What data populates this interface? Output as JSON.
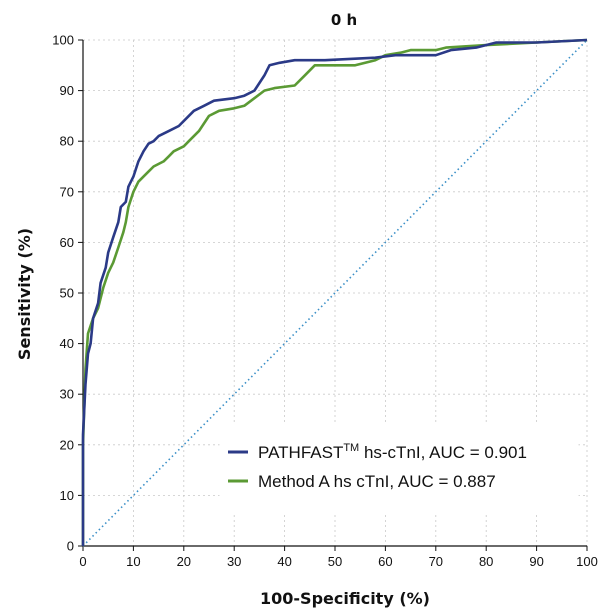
{
  "chart_data": {
    "type": "line",
    "title": "0 h",
    "xlabel": "100-Specificity (%)",
    "ylabel": "Sensitivity (%)",
    "xlim": [
      0,
      100
    ],
    "ylim": [
      0,
      100
    ],
    "x_ticks": [
      "0",
      "10",
      "20",
      "30",
      "40",
      "50",
      "60",
      "70",
      "80",
      "90",
      "100"
    ],
    "y_ticks": [
      "0",
      "10",
      "20",
      "30",
      "40",
      "50",
      "60",
      "70",
      "80",
      "90",
      "100"
    ],
    "grid": true,
    "legend_position": "bottom-right",
    "series": [
      {
        "name_main": "PATHFAST",
        "name_sup": "TM",
        "name_rest": " hs-cTnI, AUC = 0.901",
        "color": "#2b3a87",
        "points": [
          [
            0,
            0
          ],
          [
            0,
            22
          ],
          [
            0.5,
            32
          ],
          [
            1,
            38
          ],
          [
            1.5,
            40
          ],
          [
            2,
            45
          ],
          [
            3,
            48
          ],
          [
            3.5,
            52
          ],
          [
            4.5,
            55
          ],
          [
            5,
            58
          ],
          [
            6,
            61
          ],
          [
            7,
            64
          ],
          [
            7.5,
            67
          ],
          [
            8.5,
            68
          ],
          [
            9,
            71
          ],
          [
            10,
            73
          ],
          [
            11,
            76
          ],
          [
            12,
            78
          ],
          [
            13,
            79.5
          ],
          [
            14,
            80
          ],
          [
            15,
            81
          ],
          [
            17,
            82
          ],
          [
            19,
            83
          ],
          [
            21,
            85
          ],
          [
            22,
            86
          ],
          [
            24,
            87
          ],
          [
            26,
            88
          ],
          [
            30,
            88.5
          ],
          [
            32,
            89
          ],
          [
            34,
            90
          ],
          [
            36,
            93
          ],
          [
            37,
            95
          ],
          [
            39,
            95.5
          ],
          [
            42,
            96
          ],
          [
            48,
            96
          ],
          [
            58,
            96.5
          ],
          [
            62,
            97
          ],
          [
            70,
            97
          ],
          [
            73,
            98
          ],
          [
            78,
            98.5
          ],
          [
            82,
            99.5
          ],
          [
            90,
            99.5
          ],
          [
            100,
            100
          ]
        ]
      },
      {
        "name_main": "Method A hs cTnI, AUC = 0.887",
        "name_sup": "",
        "name_rest": "",
        "color": "#5b9a34",
        "points": [
          [
            0,
            0
          ],
          [
            0,
            20
          ],
          [
            0.5,
            35
          ],
          [
            1,
            42
          ],
          [
            2,
            45
          ],
          [
            3,
            47
          ],
          [
            4,
            51
          ],
          [
            5,
            54
          ],
          [
            6,
            56
          ],
          [
            7,
            59
          ],
          [
            8,
            62
          ],
          [
            8.5,
            64
          ],
          [
            9,
            67
          ],
          [
            10,
            70
          ],
          [
            11,
            72
          ],
          [
            12,
            73
          ],
          [
            13,
            74
          ],
          [
            14,
            75
          ],
          [
            16,
            76
          ],
          [
            17,
            77
          ],
          [
            18,
            78
          ],
          [
            20,
            79
          ],
          [
            21,
            80
          ],
          [
            23,
            82
          ],
          [
            25,
            85
          ],
          [
            27,
            86
          ],
          [
            30,
            86.5
          ],
          [
            32,
            87
          ],
          [
            34,
            88.5
          ],
          [
            36,
            90
          ],
          [
            38,
            90.5
          ],
          [
            42,
            91
          ],
          [
            44,
            93
          ],
          [
            46,
            95
          ],
          [
            48,
            95
          ],
          [
            54,
            95
          ],
          [
            58,
            96
          ],
          [
            60,
            97
          ],
          [
            63,
            97.5
          ],
          [
            65,
            98
          ],
          [
            70,
            98
          ],
          [
            72,
            98.5
          ],
          [
            80,
            99
          ],
          [
            90,
            99.5
          ],
          [
            100,
            100
          ]
        ]
      },
      {
        "name_main": "",
        "name_sup": "",
        "name_rest": "",
        "color": "#3a8fc7",
        "points": [
          [
            0,
            0
          ],
          [
            100,
            100
          ]
        ]
      }
    ]
  }
}
